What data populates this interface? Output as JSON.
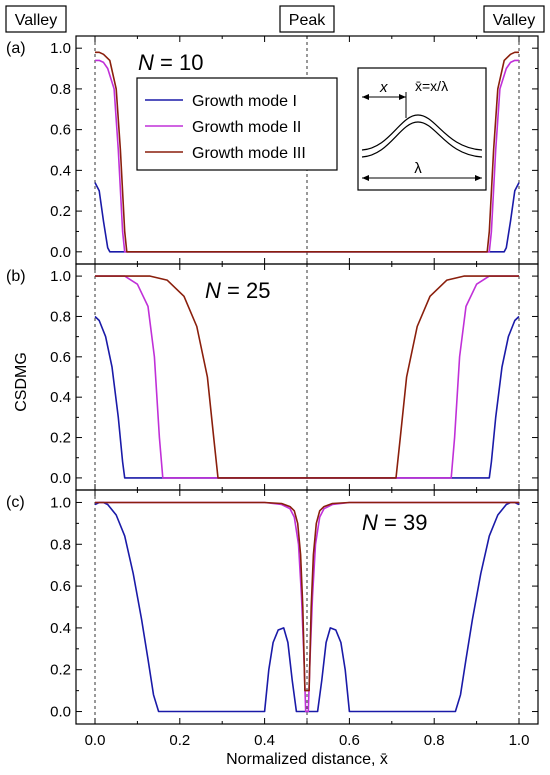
{
  "top_labels": {
    "left": "Valley",
    "center": "Peak",
    "right": "Valley"
  },
  "ylabel": "CSDMG",
  "xlabel": "Normalized distance, x̄",
  "colors": {
    "mode1": "#1a1aa8",
    "mode2": "#c030d8",
    "mode3": "#8a1f0c",
    "axis": "#000000"
  },
  "legend": [
    {
      "label": "Growth mode I",
      "color": "#1a1aa8"
    },
    {
      "label": "Growth mode II",
      "color": "#c030d8"
    },
    {
      "label": "Growth mode III",
      "color": "#8a1f0c"
    }
  ],
  "inset": {
    "x_label": "x",
    "formula": "x̄=x/λ",
    "lambda": "λ"
  },
  "chart_data": [
    {
      "type": "line",
      "panel": "(a)",
      "annotation": "N = 10",
      "xlim": [
        0,
        1
      ],
      "ylim": [
        -0.05,
        1.05
      ],
      "yticks": [
        0.0,
        0.2,
        0.4,
        0.6,
        0.8,
        1.0
      ],
      "series": [
        {
          "name": "Growth mode I",
          "x": [
            0,
            0.01,
            0.02,
            0.03,
            0.035,
            0.965,
            0.97,
            0.98,
            0.99,
            1.0
          ],
          "y": [
            0.34,
            0.3,
            0.15,
            0.02,
            0.0,
            0.0,
            0.02,
            0.15,
            0.3,
            0.34
          ]
        },
        {
          "name": "Growth mode II",
          "x": [
            0,
            0.01,
            0.02,
            0.03,
            0.045,
            0.055,
            0.065,
            0.07,
            0.93,
            0.935,
            0.945,
            0.955,
            0.97,
            0.98,
            0.99,
            1.0
          ],
          "y": [
            0.94,
            0.94,
            0.93,
            0.9,
            0.8,
            0.5,
            0.1,
            0.0,
            0.0,
            0.1,
            0.5,
            0.8,
            0.9,
            0.93,
            0.94,
            0.94
          ]
        },
        {
          "name": "Growth mode III",
          "x": [
            0,
            0.01,
            0.02,
            0.035,
            0.05,
            0.06,
            0.07,
            0.075,
            0.925,
            0.93,
            0.94,
            0.95,
            0.965,
            0.98,
            0.99,
            1.0
          ],
          "y": [
            0.98,
            0.98,
            0.97,
            0.94,
            0.8,
            0.5,
            0.1,
            0.0,
            0.0,
            0.1,
            0.5,
            0.8,
            0.94,
            0.97,
            0.98,
            0.98
          ]
        }
      ]
    },
    {
      "type": "line",
      "panel": "(b)",
      "annotation": "N = 25",
      "xlim": [
        0,
        1
      ],
      "ylim": [
        -0.05,
        1.05
      ],
      "yticks": [
        0.0,
        0.2,
        0.4,
        0.6,
        0.8,
        1.0
      ],
      "series": [
        {
          "name": "Growth mode I",
          "x": [
            0,
            0.01,
            0.025,
            0.04,
            0.055,
            0.065,
            0.07,
            0.93,
            0.935,
            0.945,
            0.96,
            0.975,
            0.99,
            1.0
          ],
          "y": [
            0.8,
            0.78,
            0.7,
            0.55,
            0.3,
            0.08,
            0.0,
            0.0,
            0.08,
            0.3,
            0.55,
            0.7,
            0.78,
            0.8
          ]
        },
        {
          "name": "Growth mode II",
          "x": [
            0,
            0.01,
            0.03,
            0.07,
            0.1,
            0.125,
            0.14,
            0.152,
            0.16,
            0.84,
            0.848,
            0.86,
            0.875,
            0.9,
            0.93,
            0.97,
            0.99,
            1.0
          ],
          "y": [
            1.0,
            1.0,
            1.0,
            1.0,
            0.96,
            0.85,
            0.6,
            0.2,
            0.0,
            0.0,
            0.2,
            0.6,
            0.85,
            0.96,
            1.0,
            1.0,
            1.0,
            1.0
          ]
        },
        {
          "name": "Growth mode III",
          "x": [
            0,
            0.01,
            0.05,
            0.13,
            0.17,
            0.21,
            0.24,
            0.265,
            0.28,
            0.29,
            0.71,
            0.72,
            0.735,
            0.76,
            0.79,
            0.83,
            0.87,
            0.95,
            0.99,
            1.0
          ],
          "y": [
            1.0,
            1.0,
            1.0,
            1.0,
            0.98,
            0.9,
            0.75,
            0.5,
            0.2,
            0.0,
            0.0,
            0.2,
            0.5,
            0.75,
            0.9,
            0.98,
            1.0,
            1.0,
            1.0,
            1.0
          ]
        }
      ]
    },
    {
      "type": "line",
      "panel": "(c)",
      "annotation": "N = 39",
      "xlim": [
        0,
        1
      ],
      "ylim": [
        -0.05,
        1.05
      ],
      "yticks": [
        0.0,
        0.2,
        0.4,
        0.6,
        0.8,
        1.0
      ],
      "series": [
        {
          "name": "Growth mode I",
          "x": [
            0,
            0.01,
            0.02,
            0.03,
            0.05,
            0.07,
            0.09,
            0.11,
            0.125,
            0.138,
            0.15,
            0.4,
            0.41,
            0.42,
            0.432,
            0.445,
            0.455,
            0.465,
            0.475,
            0.525,
            0.535,
            0.545,
            0.555,
            0.568,
            0.58,
            0.59,
            0.6,
            0.85,
            0.862,
            0.875,
            0.89,
            0.91,
            0.93,
            0.95,
            0.97,
            0.98,
            0.99,
            1.0
          ],
          "y": [
            0.99,
            1.0,
            1.0,
            0.99,
            0.94,
            0.84,
            0.66,
            0.44,
            0.25,
            0.08,
            0.0,
            0.0,
            0.2,
            0.33,
            0.39,
            0.4,
            0.33,
            0.15,
            0.0,
            0.0,
            0.15,
            0.33,
            0.4,
            0.39,
            0.33,
            0.2,
            0.0,
            0.0,
            0.08,
            0.25,
            0.44,
            0.66,
            0.84,
            0.94,
            0.99,
            1.0,
            1.0,
            0.99
          ]
        },
        {
          "name": "Growth mode II",
          "x": [
            0,
            0.3,
            0.4,
            0.44,
            0.46,
            0.47,
            0.48,
            0.487,
            0.493,
            0.497,
            0.503,
            0.507,
            0.513,
            0.52,
            0.53,
            0.54,
            0.56,
            0.6,
            0.7,
            1.0
          ],
          "y": [
            1.0,
            1.0,
            1.0,
            0.99,
            0.97,
            0.93,
            0.8,
            0.55,
            0.25,
            0.0,
            0.0,
            0.25,
            0.55,
            0.8,
            0.93,
            0.97,
            0.99,
            1.0,
            1.0,
            1.0
          ]
        },
        {
          "name": "Growth mode III",
          "x": [
            0,
            0.3,
            0.4,
            0.44,
            0.46,
            0.47,
            0.478,
            0.485,
            0.49,
            0.495,
            0.505,
            0.51,
            0.515,
            0.522,
            0.53,
            0.54,
            0.56,
            0.6,
            0.7,
            1.0
          ],
          "y": [
            1.0,
            1.0,
            1.0,
            0.995,
            0.98,
            0.96,
            0.9,
            0.75,
            0.5,
            0.1,
            0.1,
            0.5,
            0.75,
            0.9,
            0.96,
            0.98,
            0.995,
            1.0,
            1.0,
            1.0
          ]
        }
      ]
    }
  ],
  "xticks": [
    "0.0",
    "0.2",
    "0.4",
    "0.6",
    "0.8",
    "1.0"
  ]
}
